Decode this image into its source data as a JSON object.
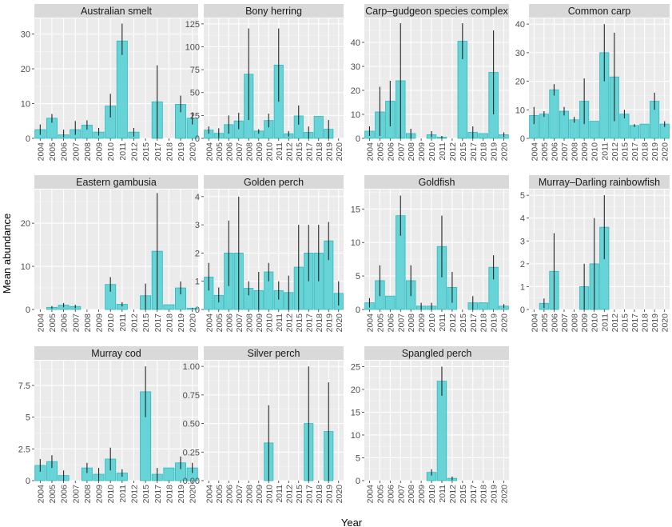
{
  "figure": {
    "xlabel": "Year",
    "ylabel": "Mean abundance",
    "bar_color": "#5fd3d6",
    "bar_stroke": "#2fb8bd",
    "panel_bg": "#ebebeb",
    "strip_bg": "#d9d9d9"
  },
  "chart_data": [
    {
      "type": "bar",
      "title": "Australian smelt",
      "categories": [
        "2004",
        "2005",
        "2006",
        "2007",
        "2008",
        "2009",
        "2010",
        "2011",
        "2012",
        "2015",
        "2017",
        "2018",
        "2019",
        "2020"
      ],
      "values": [
        2.5,
        5.8,
        1.0,
        2.5,
        3.8,
        1.8,
        9.3,
        28.0,
        1.8,
        0,
        10.5,
        0,
        9.8,
        5.8
      ],
      "error_low": [
        1.0,
        4.5,
        0.3,
        1.0,
        2.5,
        0.8,
        6.0,
        24.0,
        0.5,
        0,
        0,
        0,
        7.5,
        4.0
      ],
      "error_high": [
        4.0,
        7.0,
        2.5,
        5.0,
        5.2,
        3.0,
        12.8,
        33.0,
        3.0,
        0,
        21.0,
        0,
        12.3,
        7.5
      ],
      "yticks": [
        0,
        10,
        20,
        30
      ],
      "ylim": [
        0,
        34.5
      ]
    },
    {
      "type": "bar",
      "title": "Bony herring",
      "categories": [
        "2004",
        "2005",
        "2006",
        "2007",
        "2008",
        "2009",
        "2010",
        "2011",
        "2012",
        "2015",
        "2017",
        "2018",
        "2019",
        "2020"
      ],
      "values": [
        9,
        5.5,
        15,
        19,
        70,
        8,
        19.5,
        80,
        5,
        24.5,
        6.5,
        24,
        10,
        0
      ],
      "error_low": [
        5,
        0.5,
        5,
        10,
        20,
        5,
        12,
        40,
        2,
        15,
        0,
        24,
        0,
        0
      ],
      "error_high": [
        13,
        11,
        25,
        28,
        120,
        10,
        27,
        120,
        8,
        36,
        13,
        24,
        20,
        0
      ],
      "yticks": [
        0,
        25,
        50,
        75,
        100,
        125
      ],
      "ylim": [
        0,
        131
      ]
    },
    {
      "type": "bar",
      "title": "Carp–gudgeon species complex",
      "categories": [
        "2004",
        "2005",
        "2006",
        "2007",
        "2008",
        "2009",
        "2010",
        "2011",
        "2012",
        "2015",
        "2017",
        "2018",
        "2019",
        "2020"
      ],
      "values": [
        3,
        11,
        15.5,
        24,
        2,
        0,
        1.5,
        0.5,
        0,
        40.5,
        2.5,
        2,
        27.5,
        1.5
      ],
      "error_low": [
        1,
        1,
        5,
        0,
        0,
        0,
        0.5,
        0,
        0,
        33,
        0,
        2,
        10,
        0.5
      ],
      "error_high": [
        5,
        21.5,
        24,
        48,
        4,
        0,
        3,
        1,
        0,
        48,
        5,
        2,
        45,
        2.5
      ],
      "yticks": [
        0,
        10,
        20,
        30,
        40
      ],
      "ylim": [
        0,
        50
      ]
    },
    {
      "type": "bar",
      "title": "Common carp",
      "categories": [
        "2004",
        "2005",
        "2006",
        "2007",
        "2008",
        "2009",
        "2010",
        "2011",
        "2012",
        "2015",
        "2017",
        "2018",
        "2019",
        "2020"
      ],
      "values": [
        8,
        8.5,
        17,
        9.5,
        6.5,
        13,
        6,
        30,
        21.5,
        8.5,
        4.5,
        5,
        13,
        5
      ],
      "error_low": [
        5,
        7.5,
        15,
        8,
        5.5,
        5,
        6,
        20,
        6,
        7,
        4,
        5,
        10,
        4
      ],
      "error_high": [
        11,
        9.5,
        19,
        11,
        7.5,
        21,
        6,
        40,
        37,
        10,
        5,
        5,
        16,
        6
      ],
      "yticks": [
        0,
        10,
        20,
        30,
        40
      ],
      "ylim": [
        0,
        42
      ]
    },
    {
      "type": "bar",
      "title": "Eastern gambusia",
      "categories": [
        "2004",
        "2005",
        "2006",
        "2007",
        "2008",
        "2009",
        "2010",
        "2011",
        "2012",
        "2015",
        "2017",
        "2018",
        "2019",
        "2020"
      ],
      "values": [
        0,
        0.5,
        1,
        0.7,
        0,
        0,
        5.8,
        1.2,
        0,
        3.2,
        13.5,
        1.1,
        5,
        0.3
      ],
      "error_low": [
        0,
        0.2,
        0.5,
        0.3,
        0,
        0,
        4.1,
        0.7,
        0,
        0,
        0,
        1.1,
        3.5,
        0.2
      ],
      "error_high": [
        0,
        0.8,
        1.5,
        1.1,
        0,
        0,
        7.5,
        1.7,
        0,
        6,
        27,
        1.1,
        6.5,
        0.4
      ],
      "yticks": [
        0,
        10,
        20
      ],
      "ylim": [
        0,
        27.8
      ]
    },
    {
      "type": "bar",
      "title": "Golden perch",
      "categories": [
        "2004",
        "2005",
        "2006",
        "2007",
        "2008",
        "2009",
        "2010",
        "2011",
        "2012",
        "2015",
        "2017",
        "2018",
        "2019",
        "2020"
      ],
      "values": [
        1.15,
        0.5,
        2,
        2,
        0.75,
        0.67,
        1.33,
        0.67,
        0.6,
        1.5,
        2,
        2,
        2.43,
        0.57
      ],
      "error_low": [
        0.67,
        0.25,
        0.83,
        0,
        0.5,
        0,
        1.0,
        0.35,
        0,
        0,
        1,
        1,
        1.75,
        0.14
      ],
      "error_high": [
        1.65,
        0.78,
        3.15,
        4,
        1.0,
        1.33,
        1.65,
        1.0,
        1.2,
        3,
        3,
        3,
        3.1,
        1.0
      ],
      "yticks": [
        0,
        1,
        2,
        3,
        4
      ],
      "ylim": [
        0,
        4.25
      ]
    },
    {
      "type": "bar",
      "title": "Goldfish",
      "categories": [
        "2004",
        "2005",
        "2006",
        "2007",
        "2008",
        "2009",
        "2010",
        "2011",
        "2012",
        "2015",
        "2017",
        "2018",
        "2019",
        "2020"
      ],
      "values": [
        1,
        4.3,
        2,
        14,
        4.3,
        0.5,
        0.5,
        9.4,
        3.3,
        0,
        1,
        1,
        6.3,
        0.5
      ],
      "error_low": [
        0.3,
        2,
        2,
        11,
        2,
        0,
        0,
        4.8,
        1,
        0,
        0,
        1,
        4.5,
        0.2
      ],
      "error_high": [
        1.7,
        6.6,
        2,
        17,
        6.6,
        1,
        1,
        14,
        5.6,
        0,
        2,
        1,
        8.1,
        0.8
      ],
      "yticks": [
        0,
        5,
        10,
        15
      ],
      "ylim": [
        0,
        17.9
      ]
    },
    {
      "type": "bar",
      "title": "Murray–Darling rainbowfish",
      "categories": [
        "2004",
        "2005",
        "2006",
        "2007",
        "2008",
        "2009",
        "2010",
        "2011",
        "2012",
        "2015",
        "2017",
        "2018",
        "2019",
        "2020"
      ],
      "values": [
        0,
        0.27,
        1.67,
        0,
        0,
        1.0,
        2.0,
        3.6,
        0,
        0,
        0,
        0,
        0,
        0
      ],
      "error_low": [
        0,
        0.06,
        0,
        0,
        0,
        0,
        0,
        2.2,
        0,
        0,
        0,
        0,
        0,
        0
      ],
      "error_high": [
        0,
        0.48,
        3.34,
        0,
        0,
        2.0,
        4.0,
        5.0,
        0,
        0,
        0,
        0,
        0,
        0
      ],
      "yticks": [
        0,
        1,
        2,
        3,
        4,
        5
      ],
      "ylim": [
        0,
        5.25
      ]
    },
    {
      "type": "bar",
      "title": "Murray cod",
      "categories": [
        "2004",
        "2005",
        "2006",
        "2007",
        "2008",
        "2009",
        "2010",
        "2011",
        "2012",
        "2015",
        "2017",
        "2018",
        "2019",
        "2020"
      ],
      "values": [
        1.2,
        1.5,
        0.4,
        0,
        1.0,
        0.5,
        1.7,
        0.6,
        0,
        7.0,
        0.5,
        1.0,
        1.4,
        1.0
      ],
      "error_low": [
        0.7,
        1.0,
        0,
        0,
        0.6,
        0,
        0.8,
        0.3,
        0,
        5.0,
        0,
        1.0,
        0.9,
        0.6
      ],
      "error_high": [
        1.7,
        2.0,
        0.8,
        0,
        1.4,
        1.0,
        2.6,
        0.9,
        0,
        9.0,
        1.0,
        1.0,
        1.9,
        1.4
      ],
      "yticks": [
        0,
        2.5,
        5.0,
        7.5
      ],
      "ylim": [
        0,
        9.45
      ]
    },
    {
      "type": "bar",
      "title": "Silver perch",
      "categories": [
        "2004",
        "2005",
        "2006",
        "2007",
        "2008",
        "2009",
        "2010",
        "2011",
        "2012",
        "2015",
        "2017",
        "2018",
        "2019",
        "2020"
      ],
      "values": [
        0,
        0,
        0,
        0,
        0,
        0,
        0.33,
        0,
        0,
        0,
        0.5,
        0,
        0.43,
        0
      ],
      "error_low": [
        0,
        0,
        0,
        0,
        0,
        0,
        0,
        0,
        0,
        0,
        0,
        0,
        0,
        0
      ],
      "error_high": [
        0,
        0,
        0,
        0,
        0,
        0,
        0.66,
        0,
        0,
        0,
        1.0,
        0,
        0.86,
        0
      ],
      "yticks": [
        0,
        0.25,
        0.5,
        0.75,
        1.0
      ],
      "ytick_labels": [
        "0.00",
        "0.25",
        "0.50",
        "0.75",
        "1.00"
      ],
      "ylim": [
        0,
        1.05
      ]
    },
    {
      "type": "bar",
      "title": "Spangled perch",
      "categories": [
        "2004",
        "2005",
        "2006",
        "2007",
        "2008",
        "2009",
        "2010",
        "2011",
        "2012",
        "2015",
        "2017",
        "2018",
        "2019",
        "2020"
      ],
      "values": [
        0,
        0,
        0,
        0,
        0,
        0,
        1.8,
        21.8,
        0.5,
        0,
        0,
        0,
        0,
        0
      ],
      "error_low": [
        0,
        0,
        0,
        0,
        0,
        0,
        1.1,
        18.6,
        0.1,
        0,
        0,
        0,
        0,
        0
      ],
      "error_high": [
        0,
        0,
        0,
        0,
        0,
        0,
        2.5,
        25,
        0.9,
        0,
        0,
        0,
        0,
        0
      ],
      "yticks": [
        0,
        5,
        10,
        15,
        20,
        25
      ],
      "ylim": [
        0,
        26.3
      ]
    }
  ]
}
